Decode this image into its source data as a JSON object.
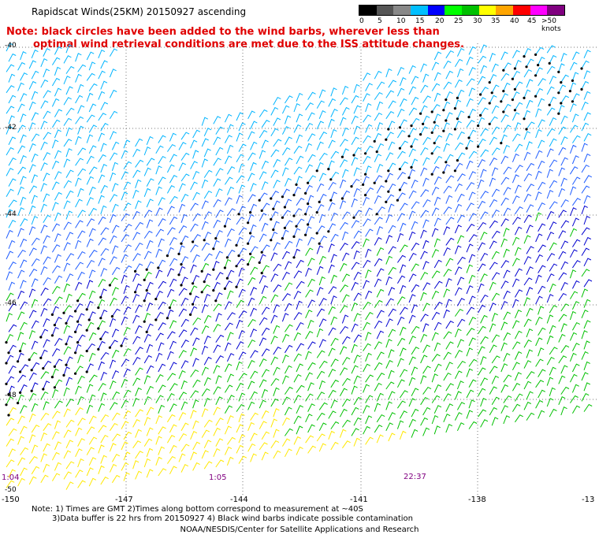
{
  "title": "Rapidscat Winds(25KM) 20150927 ascending",
  "legend": {
    "labels": [
      "0",
      "5",
      "10",
      "15",
      "20",
      "25",
      "30",
      "35",
      "40",
      "45",
      ">50 knots"
    ],
    "colors": [
      "#000000",
      "#555555",
      "#888888",
      "#00bfff",
      "#0000ff",
      "#00ff00",
      "#00c000",
      "#ffff00",
      "#ffa500",
      "#ff0000",
      "#ff00ff",
      "#800080"
    ]
  },
  "note": {
    "line1": "Note: black circles have been added to the wind barbs, wherever less than",
    "line2": "optimal wind retrieval conditions are met due to the ISS attitude changes."
  },
  "lat_labels": [
    "-40",
    "-42",
    "-44",
    "-46",
    "-48",
    "-50"
  ],
  "lon_labels": [
    "-150",
    "-147",
    "-144",
    "-141",
    "-138",
    "-13"
  ],
  "times": [
    "1:04",
    "1:05",
    "22:37"
  ],
  "footer": {
    "note1": "Note: 1) Times are GMT 2)Times along bottom correspond to measurement at ~40S",
    "note2": "3)Data buffer is 22 hrs from 20150927 4) Black wind barbs indicate possible contamination",
    "credit": "NOAA/NESDIS/Center for Satellite Applications and Research"
  }
}
